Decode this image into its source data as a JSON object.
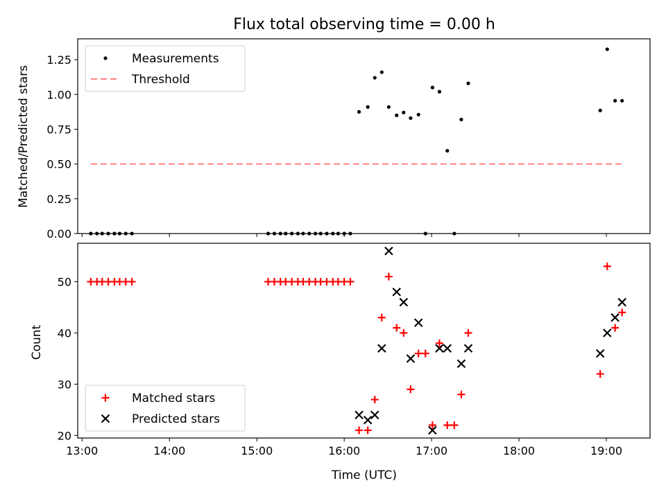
{
  "chart_data": [
    {
      "type": "scatter",
      "title": "Flux total observing time = 0.00 h",
      "ylabel": "Matched/Predicted stars",
      "xlim": [
        12.95,
        19.5
      ],
      "ylim": [
        0,
        1.4
      ],
      "x_ticks": [
        13,
        14,
        15,
        16,
        17,
        18,
        19
      ],
      "y_ticks": [
        0.0,
        0.25,
        0.5,
        0.75,
        1.0,
        1.25
      ],
      "y_tick_labels": [
        "0.00",
        "0.25",
        "0.50",
        "0.75",
        "1.00",
        "1.25"
      ],
      "legend_position": "upper-left",
      "series": [
        {
          "name": "Measurements",
          "marker": "dot",
          "color": "#000000",
          "points": [
            [
              13.1,
              0
            ],
            [
              13.17,
              0
            ],
            [
              13.23,
              0
            ],
            [
              13.3,
              0
            ],
            [
              13.37,
              0
            ],
            [
              13.43,
              0
            ],
            [
              13.5,
              0
            ],
            [
              13.57,
              0
            ],
            [
              15.13,
              0
            ],
            [
              15.2,
              0
            ],
            [
              15.27,
              0
            ],
            [
              15.33,
              0
            ],
            [
              15.4,
              0
            ],
            [
              15.47,
              0
            ],
            [
              15.53,
              0
            ],
            [
              15.6,
              0
            ],
            [
              15.67,
              0
            ],
            [
              15.73,
              0
            ],
            [
              15.8,
              0
            ],
            [
              15.87,
              0
            ],
            [
              15.93,
              0
            ],
            [
              16.0,
              0
            ],
            [
              16.07,
              0
            ],
            [
              16.17,
              0.875
            ],
            [
              16.27,
              0.91
            ],
            [
              16.35,
              1.12
            ],
            [
              16.43,
              1.16
            ],
            [
              16.51,
              0.91
            ],
            [
              16.6,
              0.85
            ],
            [
              16.68,
              0.87
            ],
            [
              16.76,
              0.83
            ],
            [
              16.85,
              0.855
            ],
            [
              16.93,
              0
            ],
            [
              17.01,
              1.05
            ],
            [
              17.09,
              1.02
            ],
            [
              17.18,
              0.595
            ],
            [
              17.26,
              0
            ],
            [
              17.34,
              0.82
            ],
            [
              17.42,
              1.08
            ],
            [
              18.93,
              0.885
            ],
            [
              19.01,
              1.325
            ],
            [
              19.1,
              0.955
            ],
            [
              19.18,
              0.955
            ]
          ]
        },
        {
          "name": "Threshold",
          "marker": "dashed-line",
          "color": "#ff8080",
          "points": [
            [
              13.1,
              0.5
            ],
            [
              19.18,
              0.5
            ]
          ]
        }
      ]
    },
    {
      "type": "scatter",
      "title": "",
      "xlabel": "Time (UTC)",
      "ylabel": "Count",
      "xlim": [
        12.95,
        19.5
      ],
      "ylim": [
        19.5,
        57.5
      ],
      "x_ticks": [
        13,
        14,
        15,
        16,
        17,
        18,
        19
      ],
      "x_tick_labels": [
        "13:00",
        "14:00",
        "15:00",
        "16:00",
        "17:00",
        "18:00",
        "19:00"
      ],
      "y_ticks": [
        20,
        30,
        40,
        50
      ],
      "y_tick_labels": [
        "20",
        "30",
        "40",
        "50"
      ],
      "legend_position": "lower-left",
      "series": [
        {
          "name": "Matched stars",
          "marker": "plus",
          "color": "#ff0000",
          "points": [
            [
              13.1,
              50
            ],
            [
              13.17,
              50
            ],
            [
              13.23,
              50
            ],
            [
              13.3,
              50
            ],
            [
              13.37,
              50
            ],
            [
              13.43,
              50
            ],
            [
              13.5,
              50
            ],
            [
              13.57,
              50
            ],
            [
              15.13,
              50
            ],
            [
              15.2,
              50
            ],
            [
              15.27,
              50
            ],
            [
              15.33,
              50
            ],
            [
              15.4,
              50
            ],
            [
              15.47,
              50
            ],
            [
              15.53,
              50
            ],
            [
              15.6,
              50
            ],
            [
              15.67,
              50
            ],
            [
              15.73,
              50
            ],
            [
              15.8,
              50
            ],
            [
              15.87,
              50
            ],
            [
              15.93,
              50
            ],
            [
              16.0,
              50
            ],
            [
              16.07,
              50
            ],
            [
              16.17,
              21
            ],
            [
              16.27,
              21
            ],
            [
              16.35,
              27
            ],
            [
              16.43,
              43
            ],
            [
              16.51,
              51
            ],
            [
              16.6,
              41
            ],
            [
              16.68,
              40
            ],
            [
              16.76,
              29
            ],
            [
              16.85,
              36
            ],
            [
              16.93,
              36
            ],
            [
              17.01,
              22
            ],
            [
              17.09,
              38
            ],
            [
              17.18,
              22
            ],
            [
              17.26,
              22
            ],
            [
              17.34,
              28
            ],
            [
              17.42,
              40
            ],
            [
              18.93,
              32
            ],
            [
              19.01,
              53
            ],
            [
              19.1,
              41
            ],
            [
              19.18,
              44
            ]
          ]
        },
        {
          "name": "Predicted stars",
          "marker": "x",
          "color": "#000000",
          "points": [
            [
              16.17,
              24
            ],
            [
              16.27,
              23
            ],
            [
              16.35,
              24
            ],
            [
              16.43,
              37
            ],
            [
              16.51,
              56
            ],
            [
              16.6,
              48
            ],
            [
              16.68,
              46
            ],
            [
              16.76,
              35
            ],
            [
              16.85,
              42
            ],
            [
              17.01,
              21
            ],
            [
              17.09,
              37
            ],
            [
              17.18,
              37
            ],
            [
              17.34,
              34
            ],
            [
              17.42,
              37
            ],
            [
              18.93,
              36
            ],
            [
              19.01,
              40
            ],
            [
              19.1,
              43
            ],
            [
              19.18,
              46
            ]
          ]
        }
      ]
    }
  ]
}
